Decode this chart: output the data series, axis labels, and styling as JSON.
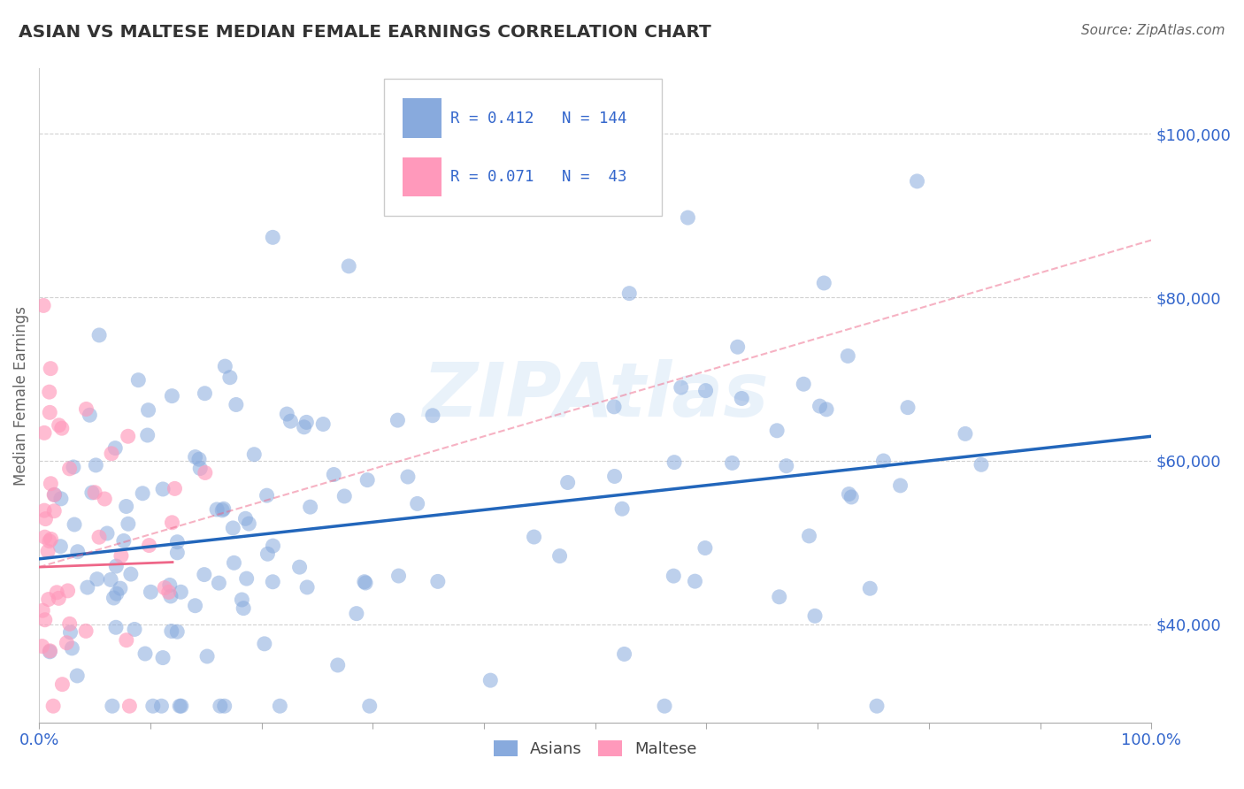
{
  "title": "ASIAN VS MALTESE MEDIAN FEMALE EARNINGS CORRELATION CHART",
  "source": "Source: ZipAtlas.com",
  "ylabel": "Median Female Earnings",
  "xlim": [
    0.0,
    1.0
  ],
  "ylim": [
    28000,
    108000
  ],
  "yticks": [
    40000,
    60000,
    80000,
    100000
  ],
  "ytick_labels": [
    "$40,000",
    "$60,000",
    "$80,000",
    "$100,000"
  ],
  "xtick_labels": [
    "0.0%",
    "100.0%"
  ],
  "xtick_positions": [
    0.0,
    1.0
  ],
  "asian_color": "#88AADD",
  "maltese_color": "#FF99BB",
  "asian_line_color": "#2266BB",
  "maltese_line_color": "#EE6688",
  "R_asian": 0.412,
  "N_asian": 144,
  "R_maltese": 0.071,
  "N_maltese": 43,
  "asian_label": "Asians",
  "maltese_label": "Maltese",
  "legend_R_color": "#3366CC",
  "watermark": "ZIPAtlas",
  "background_color": "#FFFFFF",
  "grid_color": "#CCCCCC",
  "tick_color": "#3366CC",
  "title_color": "#333333",
  "asian_scatter_seed": 42,
  "maltese_scatter_seed": 99
}
